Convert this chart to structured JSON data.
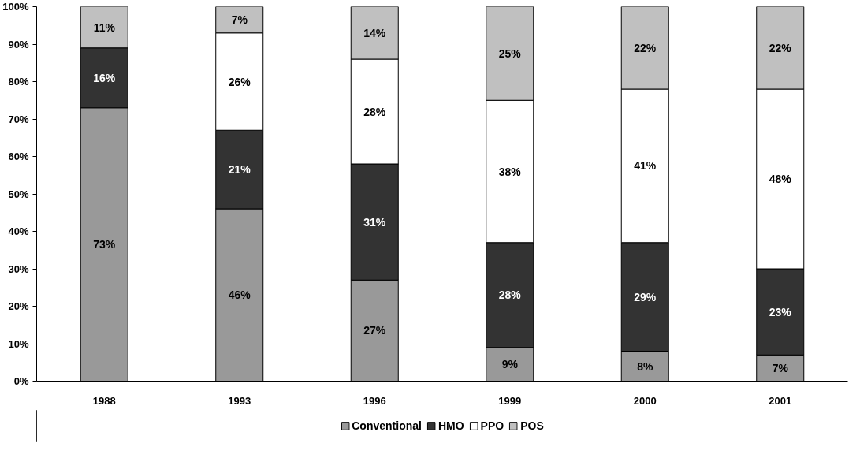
{
  "chart_data": {
    "type": "bar",
    "stacked": true,
    "categories": [
      "1988",
      "1993",
      "1996",
      "1999",
      "2000",
      "2001"
    ],
    "series": [
      {
        "name": "Conventional",
        "color": "#999999",
        "values": [
          73,
          46,
          27,
          9,
          8,
          7
        ],
        "value_labels": [
          "73%",
          "46%",
          "27%",
          "9%",
          "8%",
          "7%"
        ]
      },
      {
        "name": "HMO",
        "color": "#333333",
        "values": [
          16,
          21,
          31,
          28,
          29,
          23
        ],
        "value_labels": [
          "16%",
          "21%",
          "31%",
          "28%",
          "29%",
          "23%"
        ]
      },
      {
        "name": "PPO",
        "color": "#ffffff",
        "values": [
          null,
          26,
          28,
          38,
          41,
          48
        ],
        "value_labels": [
          null,
          "26%",
          "28%",
          "38%",
          "41%",
          "48%"
        ]
      },
      {
        "name": "POS",
        "color": "#c0c0c0",
        "values": [
          11,
          7,
          14,
          25,
          22,
          22
        ],
        "value_labels": [
          "11%",
          "7%",
          "14%",
          "25%",
          "22%",
          "22%"
        ]
      }
    ],
    "ylim": [
      0,
      100
    ],
    "yticks": [
      {
        "value": 0,
        "label": "0%"
      },
      {
        "value": 10,
        "label": "10%"
      },
      {
        "value": 20,
        "label": "20%"
      },
      {
        "value": 30,
        "label": "30%"
      },
      {
        "value": 40,
        "label": "40%"
      },
      {
        "value": 50,
        "label": "50%"
      },
      {
        "value": 60,
        "label": "60%"
      },
      {
        "value": 70,
        "label": "70%"
      },
      {
        "value": 80,
        "label": "80%"
      },
      {
        "value": 90,
        "label": "90%"
      },
      {
        "value": 100,
        "label": "100%"
      }
    ],
    "grid": false,
    "legend": "bottom"
  }
}
